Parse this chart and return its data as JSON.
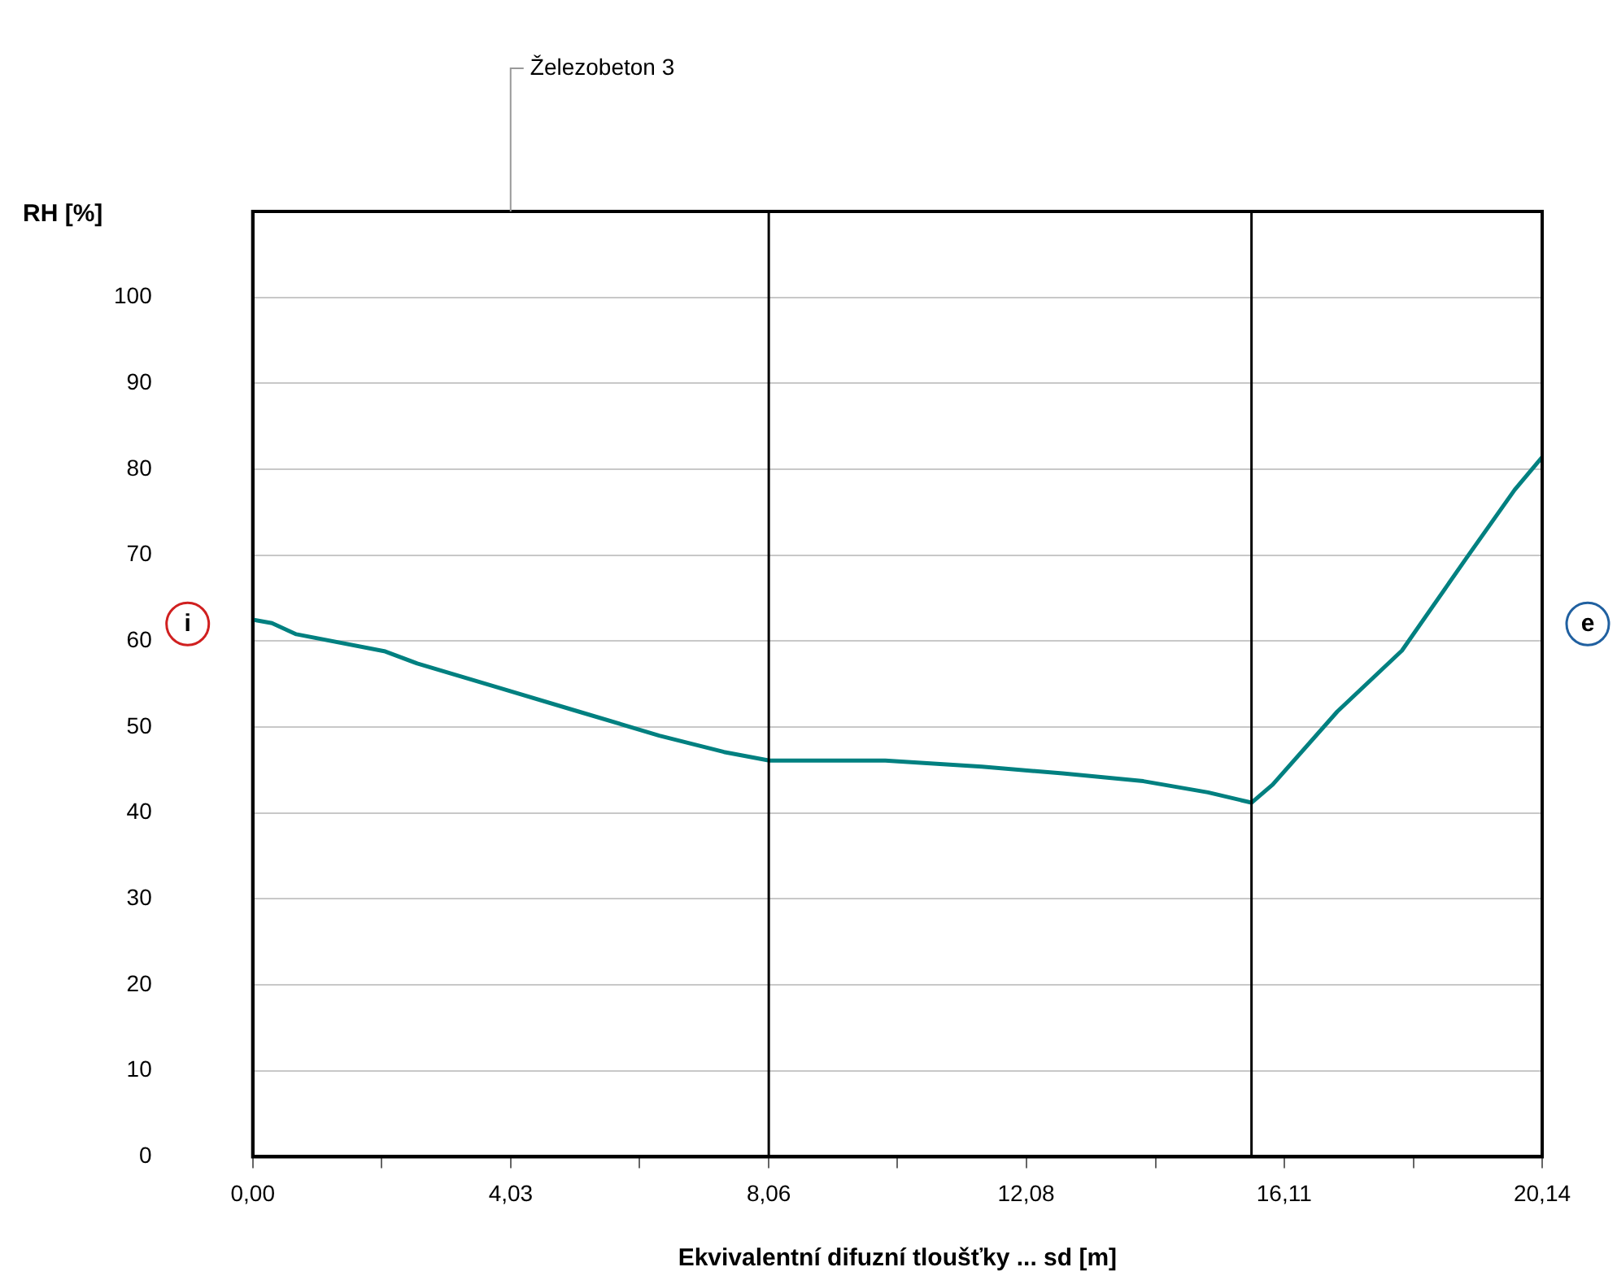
{
  "chart_data": {
    "type": "line",
    "ylabel": "RH [%]",
    "xlabel": "Ekvivalentní difuzní tloušťky ... sd [m]",
    "x": [
      0,
      0.3,
      0.68,
      2.07,
      2.57,
      3.83,
      5.09,
      6.35,
      7.36,
      8.07,
      8.87,
      9.88,
      11.39,
      12.65,
      13.91,
      14.92,
      15.6,
      15.93,
      16.94,
      17.95,
      18.96,
      19.71,
      20.14
    ],
    "series": [
      {
        "color": "#008080",
        "values": [
          62.5,
          62.1,
          60.8,
          58.8,
          57.4,
          54.6,
          51.8,
          49.0,
          47.1,
          46.1,
          46.1,
          46.1,
          45.4,
          44.6,
          43.7,
          42.4,
          41.2,
          43.3,
          51.8,
          58.9,
          69.7,
          77.6,
          81.4
        ]
      }
    ],
    "xlim": [
      0,
      20.14
    ],
    "ylim": [
      0,
      110
    ],
    "xticks": [
      {
        "value": 0,
        "label": "0,00"
      },
      {
        "value": 2.01,
        "label": null
      },
      {
        "value": 4.03,
        "label": "4,03"
      },
      {
        "value": 6.04,
        "label": null
      },
      {
        "value": 8.06,
        "label": "8,06"
      },
      {
        "value": 10.07,
        "label": null
      },
      {
        "value": 12.08,
        "label": "12,08"
      },
      {
        "value": 14.1,
        "label": null
      },
      {
        "value": 16.11,
        "label": "16,11"
      },
      {
        "value": 18.13,
        "label": null
      },
      {
        "value": 20.14,
        "label": "20,14"
      }
    ],
    "yticks": [
      0,
      10,
      20,
      30,
      40,
      50,
      60,
      70,
      80,
      90,
      100
    ],
    "grid": "y",
    "marker": "none",
    "line_style": "solid",
    "legend": false,
    "ref_lines": [
      {
        "axis": "x",
        "value": 8.06,
        "color": "#000000"
      },
      {
        "axis": "x",
        "value": 15.6,
        "color": "#000000"
      }
    ],
    "annotations": [
      "Železobeton 3",
      "i",
      "e"
    ]
  }
}
